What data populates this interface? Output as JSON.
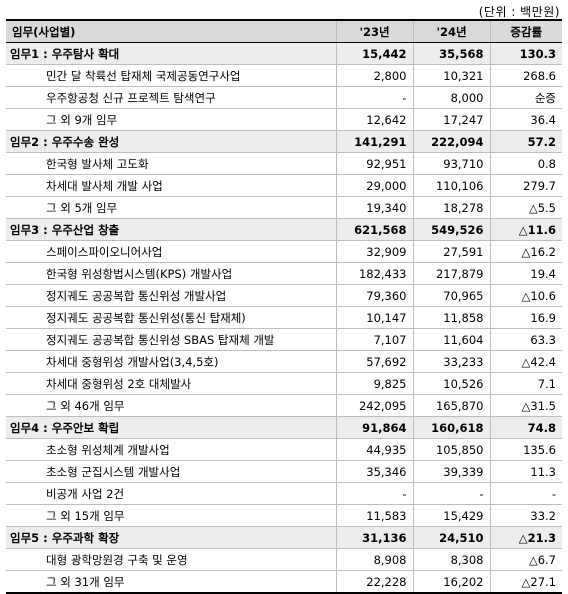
{
  "unit": "(단위 : 백만원)",
  "header": {
    "task": "임무(사업별)",
    "y23": "'23년",
    "y24": "'24년",
    "diff": "증감률"
  },
  "groups": [
    {
      "label": "임무1 : 우주탐사 확대",
      "y23": "15,442",
      "y24": "35,568",
      "diff": "130.3",
      "items": [
        {
          "label": "민간 달 착륙선 탑재체 국제공동연구사업",
          "y23": "2,800",
          "y24": "10,321",
          "diff": "268.6"
        },
        {
          "label": "우주항공청 신규 프로젝트 탐색연구",
          "y23": "-",
          "y24": "8,000",
          "diff": "순증"
        },
        {
          "label": "그 외 9개 임무",
          "y23": "12,642",
          "y24": "17,247",
          "diff": "36.4"
        }
      ]
    },
    {
      "label": "임무2 : 우주수송 완성",
      "y23": "141,291",
      "y24": "222,094",
      "diff": "57.2",
      "items": [
        {
          "label": "한국형 발사체 고도화",
          "y23": "92,951",
          "y24": "93,710",
          "diff": "0.8"
        },
        {
          "label": "차세대 발사체 개발 사업",
          "y23": "29,000",
          "y24": "110,106",
          "diff": "279.7"
        },
        {
          "label": "그 외 5개 임무",
          "y23": "19,340",
          "y24": "18,278",
          "diff": "△5.5"
        }
      ]
    },
    {
      "label": "임무3 : 우주산업 창출",
      "y23": "621,568",
      "y24": "549,526",
      "diff": "△11.6",
      "items": [
        {
          "label": "스페이스파이오니어사업",
          "y23": "32,909",
          "y24": "27,591",
          "diff": "△16.2"
        },
        {
          "label": "한국형 위성항법시스템(KPS) 개발사업",
          "y23": "182,433",
          "y24": "217,879",
          "diff": "19.4"
        },
        {
          "label": "정지궤도 공공복합 통신위성 개발사업",
          "y23": "79,360",
          "y24": "70,965",
          "diff": "△10.6"
        },
        {
          "label": "정지궤도 공공복합 통신위성(통신 탑재체)",
          "y23": "10,147",
          "y24": "11,858",
          "diff": "16.9"
        },
        {
          "label": "정지궤도 공공복합 통신위성 SBAS 탑재체 개발",
          "y23": "7,107",
          "y24": "11,604",
          "diff": "63.3"
        },
        {
          "label": "차세대 중형위성 개발사업(3,4,5호)",
          "y23": "57,692",
          "y24": "33,233",
          "diff": "△42.4"
        },
        {
          "label": "차세대 중형위성 2호 대체발사",
          "y23": "9,825",
          "y24": "10,526",
          "diff": "7.1"
        },
        {
          "label": "그 외 46개 임무",
          "y23": "242,095",
          "y24": "165,870",
          "diff": "△31.5"
        }
      ]
    },
    {
      "label": "임무4 : 우주안보 확립",
      "y23": "91,864",
      "y24": "160,618",
      "diff": "74.8",
      "items": [
        {
          "label": "초소형 위성체계 개발사업",
          "y23": "44,935",
          "y24": "105,850",
          "diff": "135.6"
        },
        {
          "label": "초소형 군집시스템 개발사업",
          "y23": "35,346",
          "y24": "39,339",
          "diff": "11.3"
        },
        {
          "label": "비공개 사업 2건",
          "y23": "-",
          "y24": "-",
          "diff": "-"
        },
        {
          "label": "그 외 15개 임무",
          "y23": "11,583",
          "y24": "15,429",
          "diff": "33.2"
        }
      ]
    },
    {
      "label": "임무5 : 우주과학 확장",
      "y23": "31,136",
      "y24": "24,510",
      "diff": "△21.3",
      "items": [
        {
          "label": "대형 광학망원경 구축 및 운영",
          "y23": "8,908",
          "y24": "8,308",
          "diff": "△6.7"
        },
        {
          "label": "그 외 31개 임무",
          "y23": "22,228",
          "y24": "16,202",
          "diff": "△27.1"
        }
      ]
    }
  ]
}
